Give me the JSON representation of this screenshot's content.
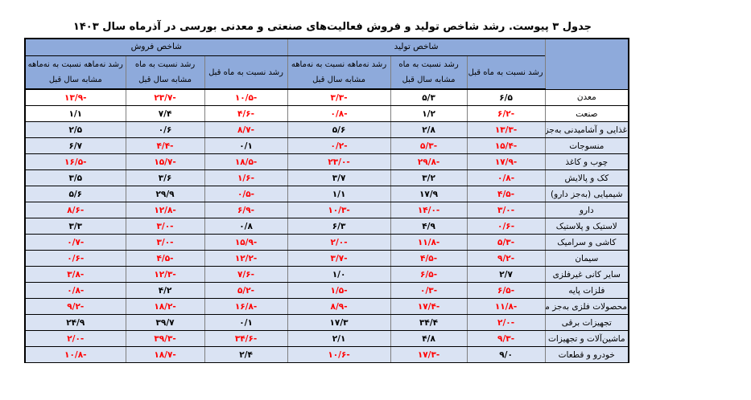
{
  "title": "جدول ۳ پیوست. رشد شاخص تولید و فروش فعالیت‌های صنعتی و معدنی بورسی در آذرماه سال ۱۴۰۳",
  "header": {
    "group_production": "شاخص تولید",
    "group_sales": "شاخص فروش",
    "col_mom": "رشد نسبت به ماه قبل",
    "col_yoy_line1": "رشد نسبت به ماه",
    "col_yoy_line2": "مشابه سال قبل",
    "col_ytd_line1": "رشد نه‌ماهه نسبت به نه‌ماهه",
    "col_ytd_line2": "مشابه سال قبل"
  },
  "colors": {
    "header_bg": "#8eaadb",
    "row_bg_blue": "#dae3f3",
    "row_bg_white": "#ffffff",
    "negative": "#ff0000",
    "positive": "#000000"
  },
  "rows": [
    {
      "label": "معدن",
      "bg": "white",
      "prod_mom": "۶/۵",
      "prod_yoy": "۵/۳",
      "prod_ytd": "-۳/۳",
      "sales_mom": "-۱۰/۵",
      "sales_yoy": "-۲۳/۷",
      "sales_ytd": "-۱۳/۹"
    },
    {
      "label": "صنعت",
      "bg": "white",
      "prod_mom": "-۶/۲",
      "prod_yoy": "۱/۲",
      "prod_ytd": "-۰/۸",
      "sales_mom": "-۴/۶",
      "sales_yoy": "۷/۴",
      "sales_ytd": "۱/۱"
    },
    {
      "label": "غذایی و آشامیدنی به‌جز قند و شکر",
      "bg": "blue",
      "prod_mom": "-۱۳/۳",
      "prod_yoy": "۲/۸",
      "prod_ytd": "۵/۶",
      "sales_mom": "-۸/۷",
      "sales_yoy": "۰/۶",
      "sales_ytd": "۲/۵"
    },
    {
      "label": "منسوجات",
      "bg": "blue",
      "prod_mom": "-۱۵/۴",
      "prod_yoy": "-۵/۳",
      "prod_ytd": "-۰/۲",
      "sales_mom": "۰/۱",
      "sales_yoy": "-۴/۴",
      "sales_ytd": "۶/۷"
    },
    {
      "label": "چوب و کاغذ",
      "bg": "blue",
      "prod_mom": "-۱۷/۹",
      "prod_yoy": "-۲۹/۸",
      "prod_ytd": "-۲۳/۰",
      "sales_mom": "-۱۸/۵",
      "sales_yoy": "-۱۵/۷",
      "sales_ytd": "-۱۶/۵"
    },
    {
      "label": "کک و پالایش",
      "bg": "blue",
      "prod_mom": "-۰/۸",
      "prod_yoy": "۳/۲",
      "prod_ytd": "۳/۷",
      "sales_mom": "-۱/۶",
      "sales_yoy": "۳/۶",
      "sales_ytd": "۳/۵"
    },
    {
      "label": "شیمیایی (به‌جز دارو)",
      "bg": "blue",
      "prod_mom": "-۴/۵",
      "prod_yoy": "۱۷/۹",
      "prod_ytd": "۱/۱",
      "sales_mom": "-۰/۵",
      "sales_yoy": "۲۹/۹",
      "sales_ytd": "۵/۶"
    },
    {
      "label": "دارو",
      "bg": "blue",
      "prod_mom": "-۳/۰",
      "prod_yoy": "-۱۴/۰",
      "prod_ytd": "-۱۰/۳",
      "sales_mom": "-۶/۹",
      "sales_yoy": "-۱۲/۸",
      "sales_ytd": "-۸/۶"
    },
    {
      "label": "لاستیک و پلاستیک",
      "bg": "blue",
      "prod_mom": "-۰/۶",
      "prod_yoy": "۴/۹",
      "prod_ytd": "۶/۳",
      "sales_mom": "۰/۸",
      "sales_yoy": "-۳/۰",
      "sales_ytd": "۳/۳"
    },
    {
      "label": "کاشی و سرامیک",
      "bg": "blue",
      "prod_mom": "-۵/۳",
      "prod_yoy": "-۱۱/۸",
      "prod_ytd": "-۲/۰",
      "sales_mom": "-۱۵/۹",
      "sales_yoy": "-۳/۰",
      "sales_ytd": "-۰/۷"
    },
    {
      "label": "سیمان",
      "bg": "blue",
      "prod_mom": "-۹/۲",
      "prod_yoy": "-۴/۵",
      "prod_ytd": "-۳/۷",
      "sales_mom": "-۱۲/۲",
      "sales_yoy": "-۴/۵",
      "sales_ytd": "-۰/۶"
    },
    {
      "label": "سایر کانی غیرفلزی",
      "bg": "blue",
      "prod_mom": "۲/۷",
      "prod_yoy": "-۶/۵",
      "prod_ytd": "۱/۰",
      "sales_mom": "-۷/۶",
      "sales_yoy": "-۱۲/۳",
      "sales_ytd": "-۳/۸"
    },
    {
      "label": "فلزات پایه",
      "bg": "blue",
      "prod_mom": "-۶/۵",
      "prod_yoy": "-۰/۳",
      "prod_ytd": "-۱/۵",
      "sales_mom": "-۵/۲",
      "sales_yoy": "۴/۲",
      "sales_ytd": "-۰/۸"
    },
    {
      "label": "محصولات فلزی به‌جز ماشین‌آلات و تجهیزات",
      "bg": "blue",
      "prod_mom": "-۱۱/۸",
      "prod_yoy": "-۱۷/۴",
      "prod_ytd": "-۸/۹",
      "sales_mom": "-۱۶/۸",
      "sales_yoy": "-۱۸/۲",
      "sales_ytd": "-۹/۲"
    },
    {
      "label": "تجهیزات برقی",
      "bg": "blue",
      "prod_mom": "-۲/۰",
      "prod_yoy": "۳۴/۴",
      "prod_ytd": "۱۷/۳",
      "sales_mom": "۰/۱",
      "sales_yoy": "۳۹/۷",
      "sales_ytd": "۲۴/۹"
    },
    {
      "label": "ماشین‌آلات و تجهیزات",
      "bg": "blue",
      "prod_mom": "-۹/۳",
      "prod_yoy": "۴/۸",
      "prod_ytd": "۲/۱",
      "sales_mom": "-۳۴/۶",
      "sales_yoy": "-۳۹/۳",
      "sales_ytd": "-۲/۰"
    },
    {
      "label": "خودرو و قطعات",
      "bg": "blue",
      "prod_mom": "۹/۰",
      "prod_yoy": "-۱۷/۳",
      "prod_ytd": "-۱۰/۶",
      "sales_mom": "۲/۴",
      "sales_yoy": "-۱۸/۷",
      "sales_ytd": "-۱۰/۸"
    }
  ]
}
